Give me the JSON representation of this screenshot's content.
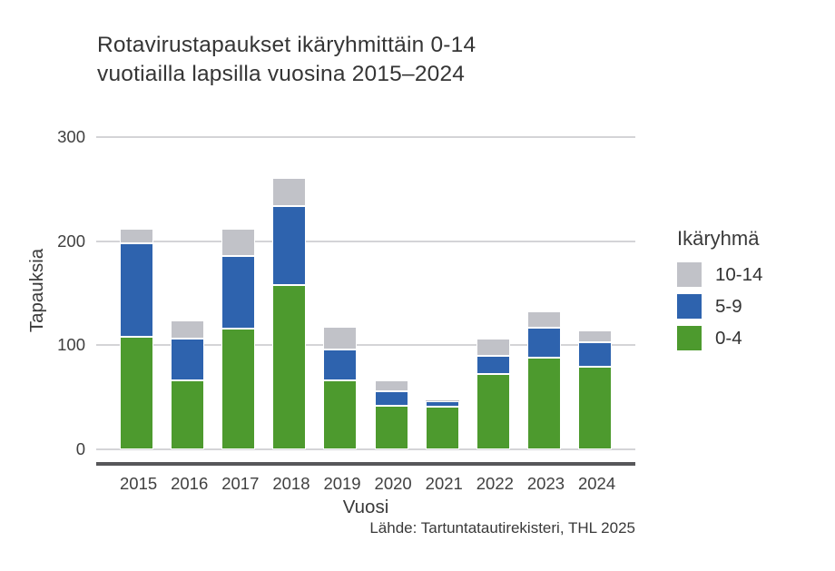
{
  "title": {
    "lines": [
      "Rotavirustapaukset ikäryhmittäin 0-14",
      "vuotiailla lapsilla vuosina 2015–2024"
    ]
  },
  "chart_data": {
    "type": "bar",
    "stacked": true,
    "title": "Rotavirustapaukset ikäryhmittäin 0-14 vuotiailla lapsilla vuosina 2015–2024",
    "categories": [
      "2015",
      "2016",
      "2017",
      "2018",
      "2019",
      "2020",
      "2021",
      "2022",
      "2023",
      "2024"
    ],
    "series": [
      {
        "name": "0-4",
        "color": "#4d9a2e",
        "values": [
          108,
          66,
          116,
          158,
          66,
          42,
          41,
          72,
          88,
          79
        ]
      },
      {
        "name": "5-9",
        "color": "#2e63ae",
        "values": [
          90,
          40,
          70,
          76,
          30,
          14,
          5,
          18,
          29,
          24
        ]
      },
      {
        "name": "10-14",
        "color": "#c1c2c8",
        "values": [
          14,
          18,
          26,
          27,
          22,
          10,
          1,
          16,
          16,
          11
        ]
      }
    ],
    "totals": [
      212,
      124,
      212,
      261,
      118,
      66,
      47,
      106,
      133,
      114
    ],
    "xlabel": "Vuosi",
    "ylabel": "Tapauksia",
    "ylim": [
      0,
      300
    ],
    "yticks": [
      0,
      100,
      200,
      300
    ],
    "grid": true,
    "grid_color": "#d4d4d7",
    "axis_line_color": "#57575a",
    "legend_title": "Ikäryhmä",
    "legend_position": "right",
    "legend_order": [
      "10-14",
      "5-9",
      "0-4"
    ],
    "caption": "Lähde: Tartuntatautirekisteri, THL 2025"
  }
}
